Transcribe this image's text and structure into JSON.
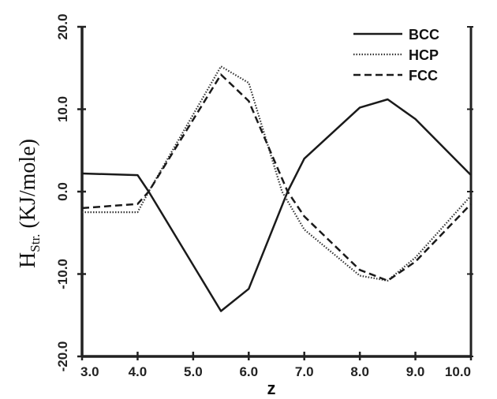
{
  "chart_data": {
    "type": "line",
    "title": "",
    "xlabel": "z",
    "ylabel_main": "H",
    "ylabel_sub": "Str.",
    "ylabel_rest": " (KJ/mole)",
    "xlim": [
      3.0,
      10.0
    ],
    "ylim": [
      -20.0,
      20.0
    ],
    "xticks": [
      3.0,
      4.0,
      5.0,
      6.0,
      7.0,
      8.0,
      9.0,
      10.0
    ],
    "xtick_labels": [
      "3.0",
      "4.0",
      "5.0",
      "6.0",
      "7.0",
      "8.0",
      "9.0",
      "10.0"
    ],
    "yticks": [
      20.0,
      10.0,
      0.0,
      -10.0,
      -20.0
    ],
    "ytick_labels": [
      "20.0",
      "10.0",
      "0.0",
      "-10.0",
      "-20.0"
    ],
    "grid": false,
    "legend_position": "top-right",
    "series": [
      {
        "name": "BCC",
        "style": "solid",
        "color": "#1a1a1a",
        "x": [
          3.0,
          4.0,
          4.2,
          5.5,
          6.0,
          6.7,
          7.0,
          8.0,
          8.5,
          9.0,
          10.0
        ],
        "y": [
          2.2,
          2.0,
          0.0,
          -14.5,
          -11.8,
          0.0,
          4.0,
          10.2,
          11.2,
          8.8,
          2.0
        ]
      },
      {
        "name": "HCP",
        "style": "dotted",
        "color": "#333333",
        "x": [
          3.0,
          4.0,
          4.2,
          5.5,
          6.0,
          6.6,
          7.0,
          8.0,
          8.5,
          9.0,
          10.0
        ],
        "y": [
          -2.5,
          -2.5,
          0.0,
          15.2,
          13.2,
          0.0,
          -4.6,
          -10.2,
          -10.8,
          -8.0,
          -0.5
        ]
      },
      {
        "name": "FCC",
        "style": "dashed",
        "color": "#1a1a1a",
        "x": [
          3.0,
          4.0,
          4.2,
          5.5,
          6.0,
          6.7,
          7.0,
          8.0,
          8.5,
          9.0,
          10.0
        ],
        "y": [
          -2.0,
          -1.5,
          0.0,
          14.2,
          11.0,
          0.0,
          -3.0,
          -9.5,
          -10.8,
          -8.5,
          -1.5
        ]
      }
    ]
  }
}
